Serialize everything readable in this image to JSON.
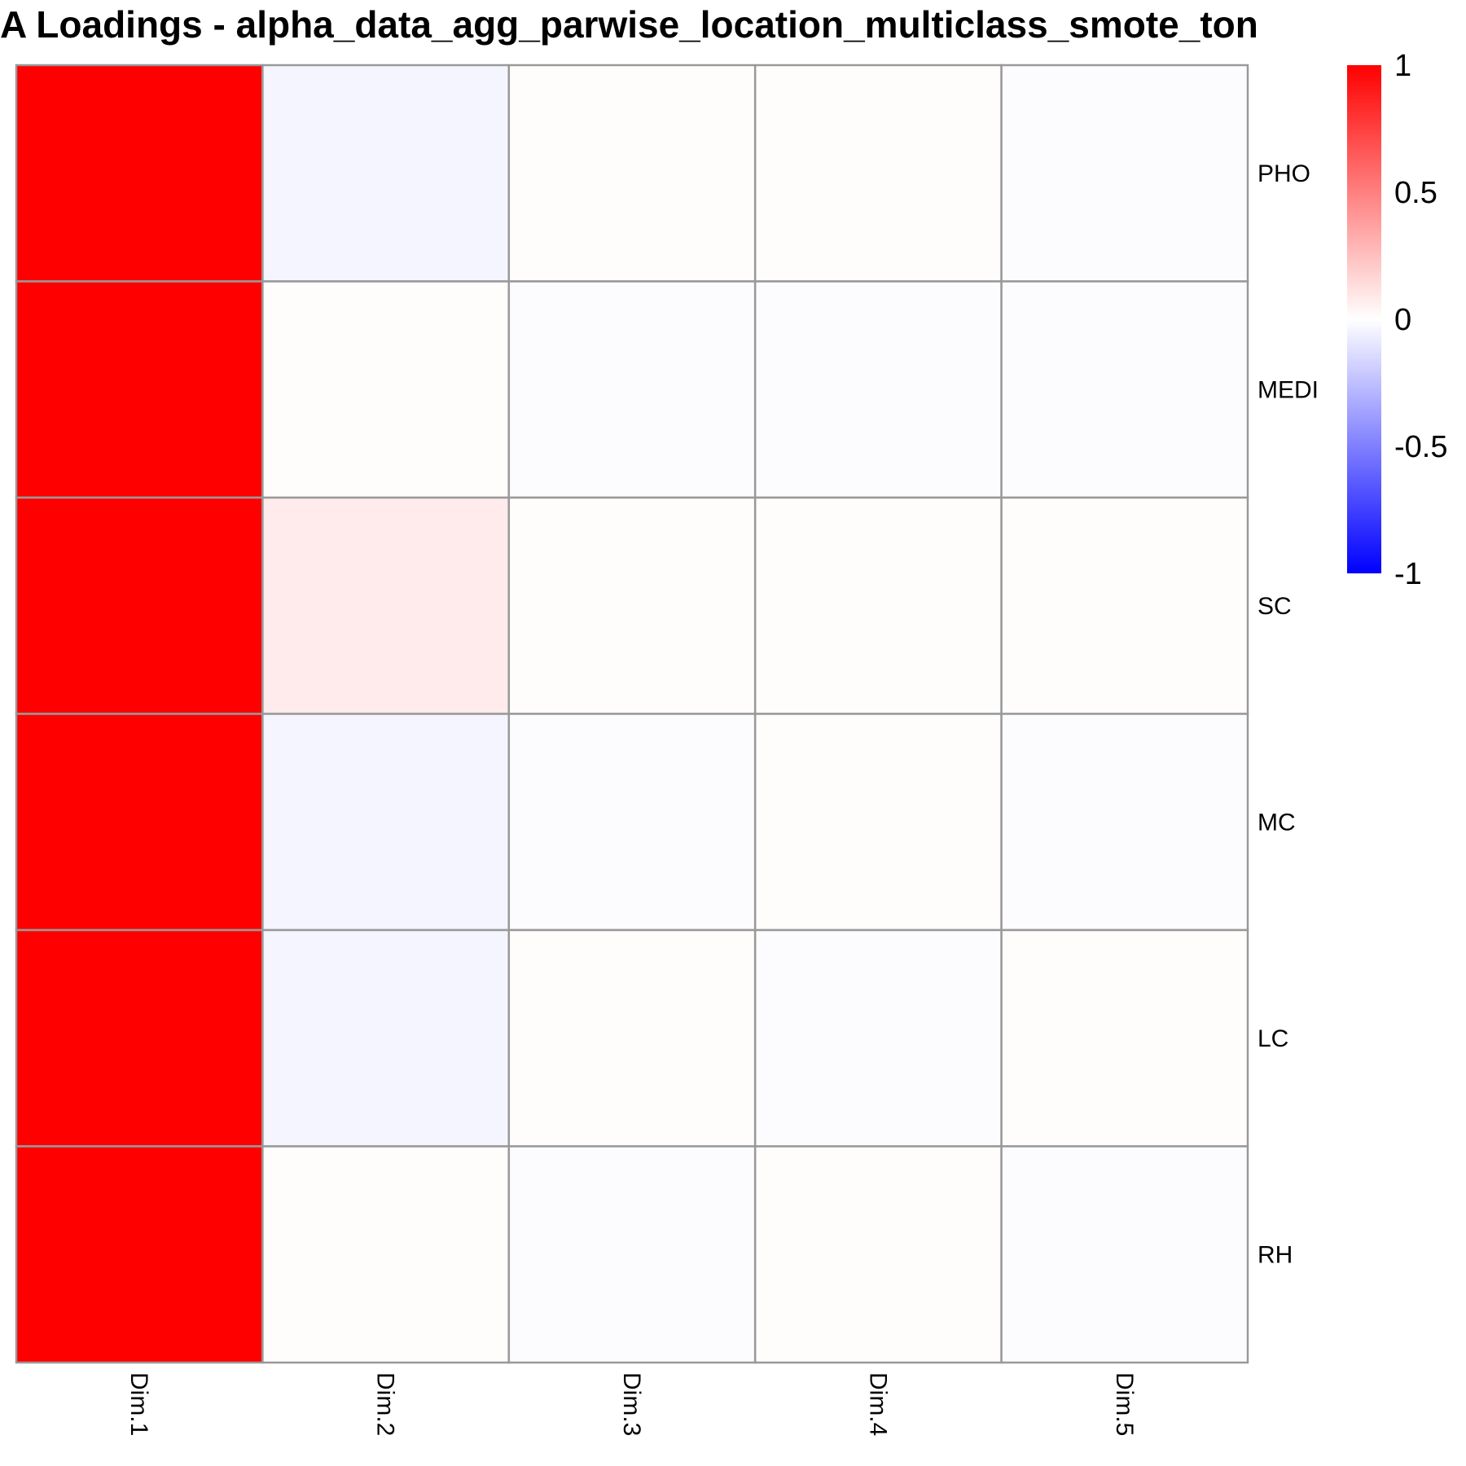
{
  "chart_data": {
    "type": "heatmap",
    "title": "A Loadings - alpha_data_agg_parwise_location_multiclass_smote_ton",
    "columns": [
      "Dim.1",
      "Dim.2",
      "Dim.3",
      "Dim.4",
      "Dim.5"
    ],
    "rows": [
      "PHO",
      "MEDI",
      "SC",
      "MC",
      "LC",
      "RH"
    ],
    "values": [
      [
        1.0,
        -0.04,
        0.01,
        0.01,
        -0.01
      ],
      [
        1.0,
        0.01,
        -0.01,
        -0.01,
        -0.01
      ],
      [
        1.0,
        0.08,
        0.01,
        0.01,
        0.01
      ],
      [
        1.0,
        -0.04,
        -0.01,
        0.01,
        -0.01
      ],
      [
        1.0,
        -0.04,
        0.01,
        -0.01,
        0.01
      ],
      [
        1.0,
        0.01,
        -0.01,
        0.01,
        -0.01
      ]
    ],
    "color_scale": {
      "min": -1,
      "mid": 0,
      "max": 1,
      "low_color": "#0000ff",
      "mid_color": "#ffffff",
      "high_color": "#ff0000"
    },
    "legend_ticks": [
      "1",
      "0.5",
      "0",
      "-0.5",
      "-1"
    ],
    "legend_placement": "top-right",
    "cell_border_color": "#999999",
    "column_labels_position": "bottom",
    "column_labels_rotation": "vertical",
    "row_labels_position": "right"
  }
}
